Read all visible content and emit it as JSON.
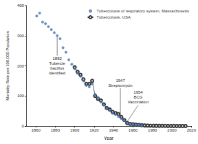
{
  "chart_data": {
    "type": "scatter",
    "x_label": "Year",
    "y_label": "Mortality Rate per 100,000 Population",
    "x": [
      1861,
      1864,
      1867,
      1870,
      1873,
      1876,
      1879,
      1882,
      1885,
      1888,
      1891,
      1894,
      1897,
      1900,
      1903,
      1906,
      1909,
      1912,
      1915,
      1918,
      1921,
      1924,
      1927,
      1930,
      1933,
      1936,
      1939,
      1942,
      1945,
      1948,
      1951,
      1954,
      1957,
      1960,
      1963,
      1966,
      1969,
      1972,
      1975,
      1978,
      1981,
      1984,
      1987,
      1990,
      1993,
      1996,
      1999,
      2002,
      2005,
      2008,
      2011,
      2014
    ],
    "series": [
      {
        "name": "Tuberculosis of respiratory system, Massachusetts",
        "type": "scatter",
        "color": "#4a74b4",
        "marker": "circle",
        "values": [
          365,
          375,
          345,
          340,
          330,
          320,
          310,
          300,
          290,
          260,
          245,
          220,
          205,
          190,
          175,
          165,
          150,
          135,
          130,
          140,
          105,
          95,
          80,
          70,
          60,
          52,
          42,
          38,
          32,
          25,
          18,
          10,
          7,
          5,
          4,
          3,
          2,
          null,
          null,
          null,
          null,
          null,
          null,
          null,
          null,
          null,
          null,
          null,
          null,
          null,
          null,
          null
        ]
      },
      {
        "name": "Tuberculosis, USA",
        "type": "line",
        "color": "#333333",
        "marker": "open_circle",
        "line_style": "solid",
        "values": [
          null,
          null,
          null,
          null,
          null,
          null,
          null,
          null,
          null,
          null,
          null,
          null,
          null,
          195,
          180,
          170,
          155,
          140,
          140,
          150,
          100,
          90,
          85,
          72,
          60,
          55,
          47,
          43,
          40,
          30,
          20,
          10,
          7,
          6,
          5,
          4,
          3,
          2,
          1.5,
          1.2,
          1,
          0.8,
          0.7,
          0.7,
          0.6,
          0.5,
          0.4,
          0.3,
          0.2,
          0.2,
          0.2,
          0.2
        ]
      }
    ],
    "xlim": [
      1850,
      2020
    ],
    "xticks": [
      1860,
      1880,
      1900,
      1920,
      1940,
      1960,
      1980,
      2000,
      2020
    ],
    "ylim": [
      0,
      400
    ],
    "yticks": [
      0,
      100,
      200,
      300,
      400
    ],
    "grid": false,
    "legend": "top-right",
    "annotations": [
      {
        "x": 1882,
        "y": 300,
        "text": "1882\nTubercle\nbacillus\nidentified"
      },
      {
        "x": 1947,
        "y": 27,
        "text": "1947\nStreptomycin"
      },
      {
        "x": 1954,
        "y": 10,
        "text": "1954\nBCG\nVaccination"
      }
    ]
  }
}
